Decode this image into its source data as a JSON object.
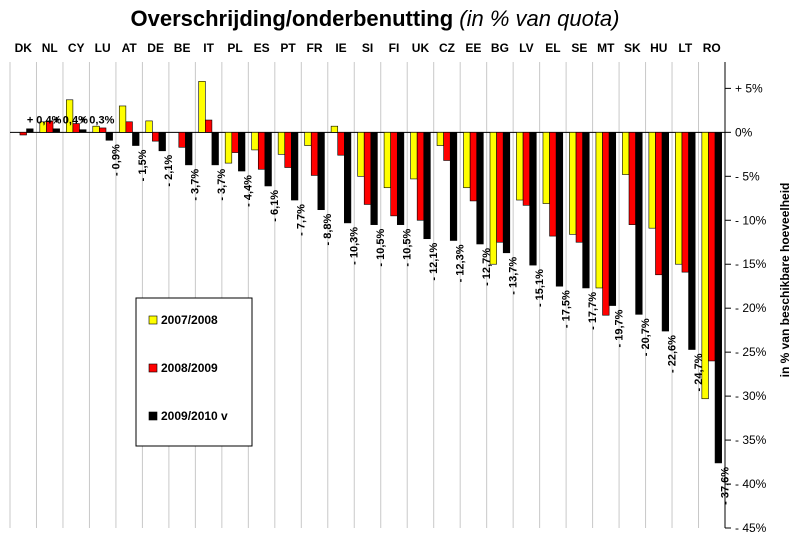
{
  "chart_data": {
    "type": "bar",
    "title": "Overschrijding/onderbenutting",
    "subtitle": "(in % van quota)",
    "ylabel": "in % van beschikbare hoeveelheid",
    "xlabel": "",
    "ylim": [
      -45,
      8
    ],
    "yticks": [
      5,
      0,
      -5,
      -10,
      -15,
      -20,
      -25,
      -30,
      -35,
      -40,
      -45
    ],
    "ytick_labels": [
      "+ 5%",
      "0%",
      "- 5%",
      "- 10%",
      "- 15%",
      "- 20%",
      "- 25%",
      "- 30%",
      "- 35%",
      "- 40%",
      "- 45%"
    ],
    "grid": "vertical",
    "legend_position": "center-left",
    "categories": [
      "DK",
      "NL",
      "CY",
      "LU",
      "AT",
      "DE",
      "BE",
      "IT",
      "PL",
      "ES",
      "PT",
      "FR",
      "IE",
      "SI",
      "FI",
      "UK",
      "CZ",
      "EE",
      "BG",
      "LV",
      "EL",
      "SE",
      "MT",
      "SK",
      "HU",
      "LT",
      "RO"
    ],
    "series": [
      {
        "name": "2007/2008",
        "color": "#ffff00",
        "values": [
          0,
          1.2,
          3.7,
          0.7,
          3.0,
          1.3,
          0,
          5.8,
          -3.5,
          -2.0,
          -2.5,
          -1.5,
          0.7,
          -5.0,
          -6.3,
          -5.3,
          -1.5,
          -6.3,
          -15.0,
          -7.7,
          -8.1,
          -11.6,
          -17.7,
          -4.8,
          -10.9,
          -15.0,
          -30.3
        ]
      },
      {
        "name": "2008/2009",
        "color": "#ff0000",
        "values": [
          -0.3,
          1.3,
          1.0,
          0.5,
          1.2,
          -1.0,
          -1.7,
          1.4,
          -2.3,
          -4.2,
          -4.0,
          -4.9,
          -2.6,
          -8.2,
          -9.5,
          -10.0,
          -3.2,
          -7.8,
          -12.5,
          -8.3,
          -11.8,
          -12.5,
          -20.8,
          -10.5,
          -16.2,
          -15.9,
          -26.0
        ]
      },
      {
        "name": "2009/2010 v",
        "color": "#000000",
        "values": [
          0.4,
          0.4,
          0.3,
          -0.9,
          -1.5,
          -2.1,
          -3.7,
          -3.7,
          -4.4,
          -6.1,
          -7.7,
          -8.8,
          -10.3,
          -10.5,
          -10.5,
          -12.1,
          -12.3,
          -12.7,
          -13.7,
          -15.1,
          -17.5,
          -17.7,
          -19.7,
          -20.7,
          -22.6,
          -24.7,
          -37.6
        ]
      }
    ],
    "data_labels": [
      "+ 0,4%",
      "+ 0,4%",
      "+ 0,3%",
      "- 0,9%",
      "- 1,5%",
      "- 2,1%",
      "- 3,7%",
      "- 3,7%",
      "- 4,4%",
      "- 6,1%",
      "- 7,7%",
      "- 8,8%",
      "- 10,3%",
      "- 10,5%",
      "- 10,5%",
      "- 12,1%",
      "- 12,3%",
      "- 12,7%",
      "- 13,7%",
      "- 15,1%",
      "- 17,5%",
      "- 17,7%",
      "- 19,7%",
      "- 20,7%",
      "- 22,6%",
      "- 24,7%",
      "- 37,6%"
    ]
  }
}
